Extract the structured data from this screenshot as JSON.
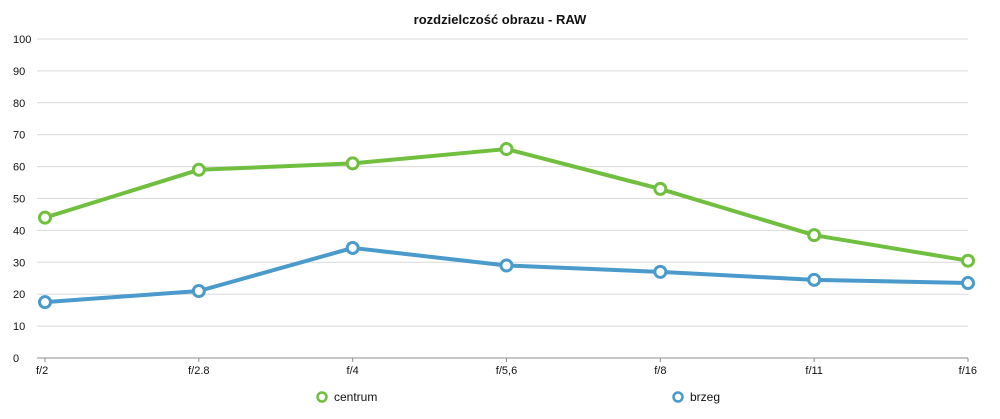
{
  "chart_data": {
    "type": "line",
    "title": "rozdzielczość obrazu - RAW",
    "xlabel": "",
    "ylabel": "",
    "categories": [
      "f/2",
      "f/2.8",
      "f/4",
      "f/5,6",
      "f/8",
      "f/11",
      "f/16"
    ],
    "ylim": [
      0,
      100
    ],
    "yticks": [
      0,
      10,
      20,
      30,
      40,
      50,
      60,
      70,
      80,
      90,
      100
    ],
    "grid": true,
    "legend": "bottom",
    "series": [
      {
        "name": "centrum",
        "color": "#70bf3f",
        "values": [
          44,
          59,
          61,
          65.5,
          53,
          38.5,
          30.5
        ]
      },
      {
        "name": "brzeg",
        "color": "#4a9acb",
        "values": [
          17.5,
          21,
          34.5,
          29,
          27,
          24.5,
          23.5
        ]
      }
    ]
  }
}
